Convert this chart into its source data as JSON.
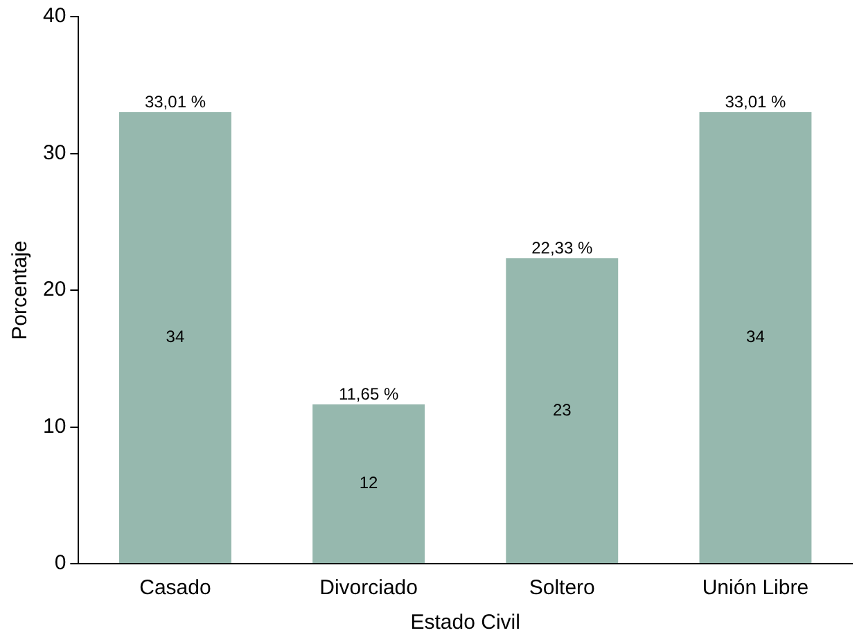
{
  "chart_data": {
    "type": "bar",
    "xlabel": "Estado Civil",
    "ylabel": "Porcentaje",
    "categories": [
      "Casado",
      "Divorciado",
      "Soltero",
      "Unión Libre"
    ],
    "values": [
      33.01,
      11.65,
      22.33,
      33.01
    ],
    "color": "#96b8ae",
    "value_labels": [
      "33,01 %",
      "11,65 %",
      "22,33 %",
      "33,01 %"
    ],
    "ylim": [
      0,
      40
    ],
    "yticks": [
      0,
      10,
      20,
      30,
      40
    ],
    "grid": false,
    "legend": false,
    "annotations": [
      "34",
      "12",
      "23",
      "34"
    ]
  }
}
